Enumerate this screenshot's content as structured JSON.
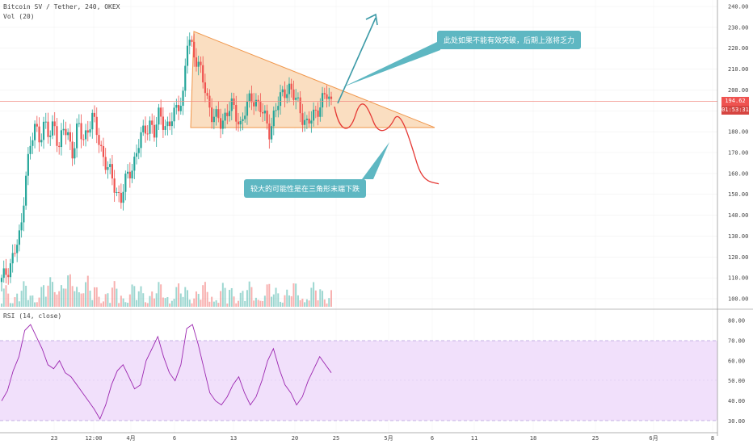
{
  "header": {
    "symbol": "Bitcoin SV / Tether, 240, OKEX",
    "vol": "Vol (20)",
    "rsi": "RSI (14, close)"
  },
  "price_axis": {
    "ticks": [
      "240.00",
      "230.00",
      "220.00",
      "210.00",
      "200.00",
      "190.00",
      "180.00",
      "170.00",
      "160.00",
      "150.00",
      "140.00",
      "130.00",
      "120.00",
      "110.00",
      "100.00"
    ],
    "last_price": "194.62",
    "countdown": "01:53:31"
  },
  "rsi_axis": {
    "ticks": [
      "80.00",
      "70.00",
      "60.00",
      "50.00",
      "40.00",
      "30.00"
    ]
  },
  "time_axis": {
    "labels": [
      "23",
      "12:00",
      "4月",
      "6",
      "13",
      "20",
      "25",
      "5月",
      "6",
      "11",
      "18",
      "25",
      "6月",
      "8"
    ]
  },
  "annotations": {
    "top_note": "此处如果不能有效突破，后期上涨将乏力",
    "bottom_note": "较大的可能性是在三角形末端下跌"
  },
  "colors": {
    "up": "#26a69a",
    "down": "#ef5350",
    "triangle_fill": "#f9d8b6",
    "triangle_line": "#f0964a",
    "note_bg": "#5eb7c2",
    "rsi_line": "#9c27b0",
    "rsi_band": "#f1e0fb",
    "projection": "#e53935"
  },
  "chart_data": {
    "type": "line",
    "price_ylim": [
      95,
      243
    ],
    "rsi_ylim": [
      28,
      82
    ],
    "triangle": {
      "apex_price": 182,
      "upper_start": 228,
      "base": 182
    },
    "key_price": {
      "last": 194.62
    },
    "price_path": [
      108,
      113,
      118,
      124,
      131,
      160,
      172,
      182,
      178,
      184,
      176,
      186,
      172,
      181,
      178,
      170,
      183,
      176,
      182,
      186,
      179,
      171,
      163,
      158,
      152,
      148,
      156,
      162,
      168,
      176,
      181,
      185,
      178,
      189,
      185,
      181,
      188,
      194,
      197,
      225,
      220,
      214,
      205,
      196,
      189,
      186,
      183,
      190,
      193,
      187,
      184,
      191,
      194,
      196,
      193,
      186,
      180,
      189,
      194,
      198,
      203,
      197,
      193,
      188,
      183,
      186,
      191,
      195,
      197,
      194
    ],
    "rsi_path": [
      40,
      45,
      55,
      62,
      75,
      78,
      72,
      66,
      58,
      56,
      60,
      54,
      52,
      48,
      44,
      40,
      36,
      31,
      38,
      48,
      55,
      58,
      52,
      46,
      48,
      60,
      66,
      72,
      62,
      54,
      50,
      58,
      76,
      78,
      68,
      56,
      44,
      40,
      38,
      42,
      48,
      52,
      44,
      38,
      42,
      50,
      60,
      66,
      56,
      48,
      44,
      38,
      42,
      50,
      56,
      62,
      58,
      54
    ]
  }
}
